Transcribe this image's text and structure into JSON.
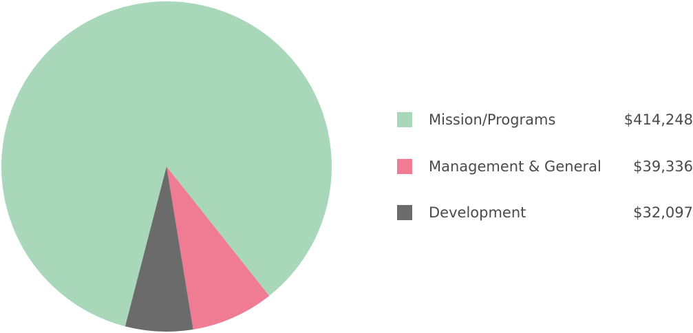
{
  "chart_data": {
    "type": "pie",
    "slices": [
      {
        "label": "Mission/Programs",
        "value": 414248,
        "value_label": "$414,248",
        "color": "#a8d8b9"
      },
      {
        "label": "Management & General",
        "value": 39336,
        "value_label": "$39,336",
        "color": "#f07c93"
      },
      {
        "label": "Development",
        "value": 32097,
        "value_label": "$32,097",
        "color": "#6b6b6b"
      }
    ],
    "legend_position": "right"
  }
}
